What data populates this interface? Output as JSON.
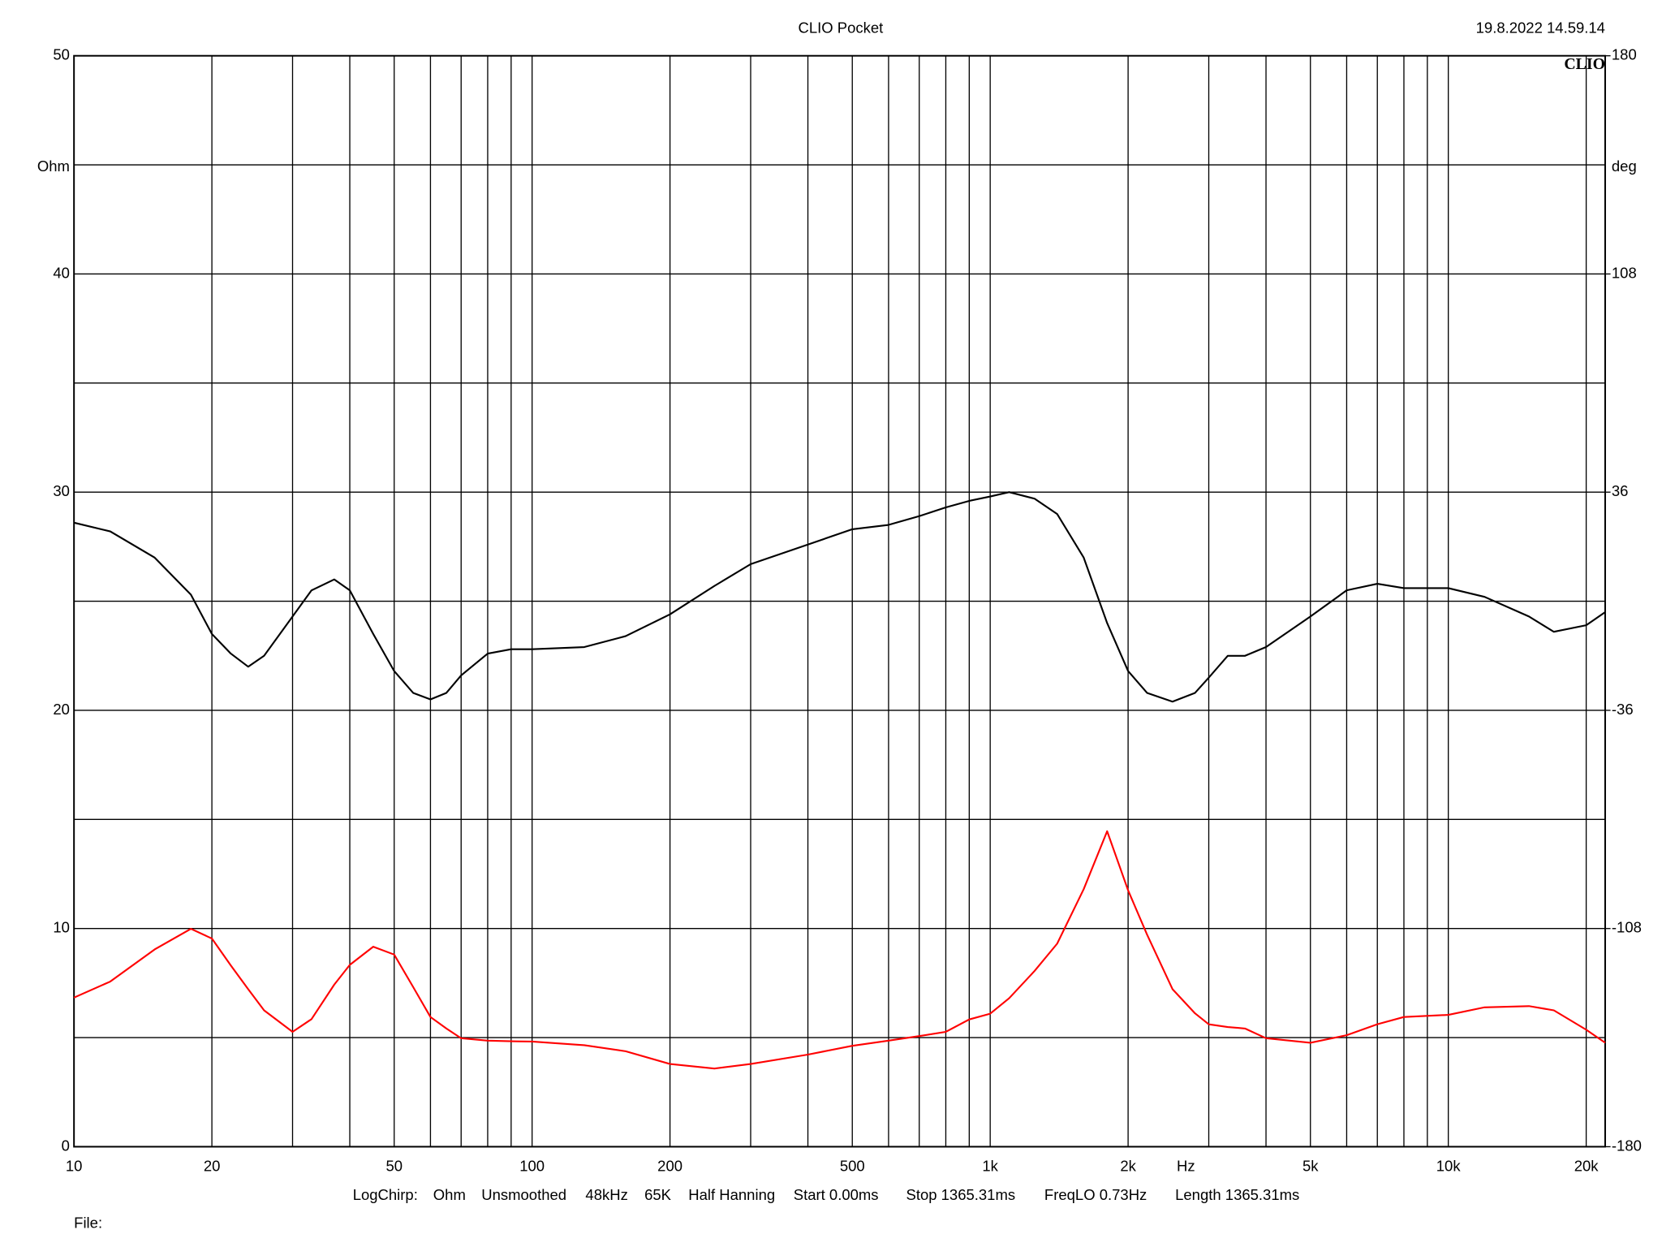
{
  "chart_data": {
    "type": "line",
    "title": "CLIO Pocket",
    "timestamp": "19.8.2022 14.59.14",
    "logo": "CLIO",
    "y_label": "Ohm",
    "y2_label": "deg",
    "x_label": "Hz",
    "footer": [
      "LogChirp:",
      "Ohm",
      "Unsmoothed",
      "48kHz",
      "65K",
      "Half Hanning",
      "Start 0.00ms",
      "Stop 1365.31ms",
      "FreqLO 0.73Hz",
      "Length 1365.31ms"
    ],
    "file_label": "File:",
    "log_x": true,
    "grid": true,
    "xlim": [
      10,
      22000
    ],
    "xticks": [
      10,
      20,
      50,
      100,
      200,
      500,
      {
        "value": 1000,
        "label": "1k"
      },
      {
        "value": 2000,
        "label": "2k"
      },
      {
        "value": 5000,
        "label": "5k"
      },
      {
        "value": 10000,
        "label": "10k"
      },
      {
        "value": 20000,
        "label": "20k"
      }
    ],
    "xgrid_minor": [
      30,
      40,
      60,
      70,
      80,
      90,
      300,
      400,
      600,
      700,
      800,
      900,
      3000,
      4000,
      6000,
      7000,
      8000,
      9000
    ],
    "ylim": [
      0,
      50
    ],
    "yticks": [
      0,
      10,
      20,
      30,
      40,
      50
    ],
    "ygrid_minor": [
      5,
      15,
      25,
      35,
      45
    ],
    "y2lim": [
      -180,
      180
    ],
    "y2ticks": [
      -180,
      -108,
      -36,
      36,
      108,
      180
    ],
    "x": [
      10,
      12,
      15,
      18,
      20,
      22,
      24,
      26,
      30,
      33,
      37,
      40,
      45,
      50,
      55,
      60,
      65,
      70,
      80,
      90,
      100,
      130,
      160,
      200,
      250,
      300,
      400,
      500,
      600,
      700,
      800,
      900,
      1000,
      1100,
      1250,
      1400,
      1600,
      1800,
      2000,
      2200,
      2500,
      2800,
      3000,
      3300,
      3600,
      4000,
      5000,
      6000,
      7000,
      8000,
      10000,
      12000,
      15000,
      17000,
      20000,
      22000
    ],
    "series": [
      {
        "name": "Impedance",
        "color": "#000000",
        "values": [
          28.6,
          28.2,
          27.0,
          25.3,
          23.5,
          22.6,
          22.0,
          22.5,
          24.3,
          25.5,
          26.0,
          25.5,
          23.5,
          21.8,
          20.8,
          20.5,
          20.8,
          21.6,
          22.6,
          22.8,
          22.8,
          22.9,
          23.4,
          24.4,
          25.7,
          26.7,
          27.6,
          28.3,
          28.5,
          28.9,
          29.3,
          29.6,
          29.8,
          30.0,
          29.7,
          29.0,
          27.0,
          24.0,
          21.8,
          20.8,
          20.4,
          20.8,
          21.5,
          22.5,
          22.5,
          22.9,
          24.3,
          25.5,
          25.8,
          25.6,
          25.6,
          25.2,
          24.3,
          23.6,
          23.9,
          24.5
        ]
      },
      {
        "name": "Phase",
        "color": "#ff0000",
        "axis": "y2",
        "values": [
          -130.8,
          -125.5,
          -114.9,
          -108.1,
          -111.3,
          -120.2,
          -128,
          -135,
          -142.1,
          -137.9,
          -126.5,
          -120,
          -114,
          -116.6,
          -127.3,
          -137.2,
          -141,
          -144.2,
          -145.0,
          -145.2,
          -145.3,
          -146.5,
          -148.5,
          -152.7,
          -154.2,
          -152.7,
          -149.6,
          -146.7,
          -145,
          -143.5,
          -142.1,
          -138,
          -136.1,
          -131,
          -122,
          -113,
          -95,
          -75.9,
          -95.4,
          -110,
          -128,
          -136,
          -139.6,
          -140.5,
          -141,
          -144.2,
          -145.7,
          -143.2,
          -139.6,
          -137.2,
          -136.5,
          -134,
          -133.6,
          -135,
          -141.4,
          -145.7
        ]
      }
    ]
  }
}
